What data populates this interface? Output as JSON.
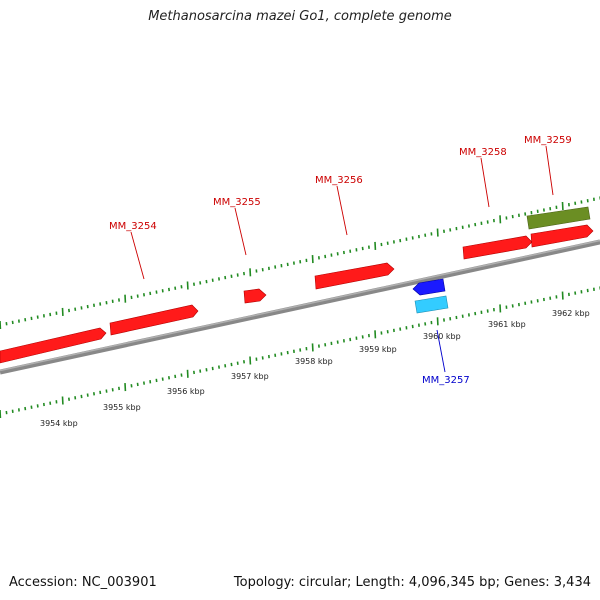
{
  "title": "Methanosarcina mazei Go1, complete genome",
  "footer": {
    "accession": "Accession: NC_003901",
    "summary": "Topology: circular; Length: 4,096,345 bp; Genes: 3,434"
  },
  "colors": {
    "forward_gene": "#ff1a1a",
    "reverse_gene": "#1a1aff",
    "reverse_gene_light": "#33ccff",
    "extra_feature": "#6b8e23",
    "label_forward": "#cc0000",
    "label_reverse": "#0000cc",
    "ticks": "#228b22",
    "backbone": "#888888"
  },
  "scale_labels": [
    "3954 kbp",
    "3955 kbp",
    "3956 kbp",
    "3957 kbp",
    "3958 kbp",
    "3959 kbp",
    "3960 kbp",
    "3961 kbp",
    "3962 kbp"
  ],
  "genes": [
    {
      "name": "",
      "strand": "forward"
    },
    {
      "name": "MM_3254",
      "strand": "forward"
    },
    {
      "name": "MM_3255",
      "strand": "forward"
    },
    {
      "name": "MM_3256",
      "strand": "forward"
    },
    {
      "name": "MM_3257",
      "strand": "reverse"
    },
    {
      "name": "MM_3258",
      "strand": "forward"
    },
    {
      "name": "MM_3259",
      "strand": "forward"
    }
  ]
}
